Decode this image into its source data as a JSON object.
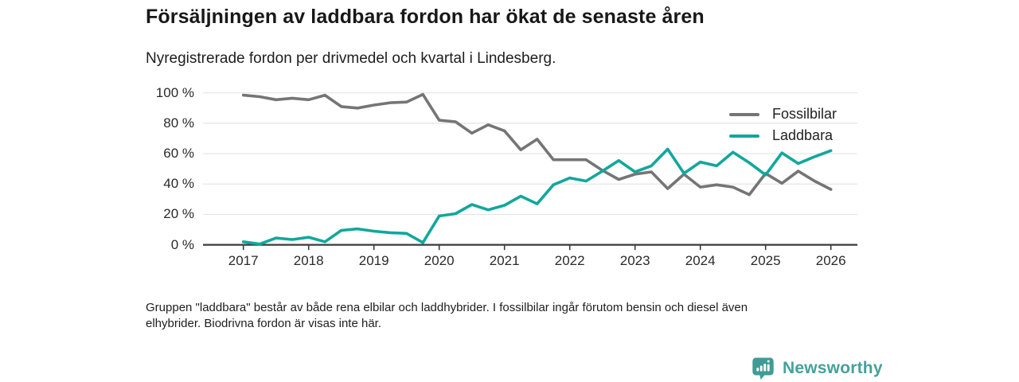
{
  "header": {
    "title": "Försäljningen av laddbara fordon har ökat de senaste åren",
    "subtitle": "Nyregistrerade fordon per drivmedel och kvartal i Lindesberg."
  },
  "chart_data": {
    "type": "line",
    "title": "Försäljningen av laddbara fordon har ökat de senaste åren",
    "subtitle": "Nyregistrerade fordon per drivmedel och kvartal i Lindesberg.",
    "x_unit": "quarter",
    "x_start": "2017 Q1",
    "x_end": "2026 Q1",
    "ylim": [
      0,
      100
    ],
    "grid": "horizontal",
    "legend_position": "top-right",
    "y_ticks": {
      "values": [
        0,
        20,
        40,
        60,
        80,
        100
      ],
      "labels": [
        "0 %",
        "20 %",
        "40 %",
        "60 %",
        "80 %",
        "100 %"
      ]
    },
    "x_ticks": {
      "positions": [
        0,
        4,
        8,
        12,
        16,
        20,
        24,
        28,
        32,
        36
      ],
      "labels": [
        "2017",
        "2018",
        "2019",
        "2020",
        "2021",
        "2022",
        "2023",
        "2024",
        "2025",
        "2026"
      ]
    },
    "series": [
      {
        "name": "Fossilbilar",
        "color": "#757575",
        "values": [
          98.5,
          97.5,
          95.5,
          96.5,
          95.5,
          98.5,
          91,
          90,
          92,
          93.5,
          94,
          99,
          82,
          81,
          73.5,
          79,
          75,
          62.5,
          69.5,
          56,
          56,
          56,
          49,
          43,
          46.5,
          48,
          37,
          46.5,
          38,
          39.5,
          38,
          33,
          47,
          40.5,
          48.5,
          42,
          36.5
        ]
      },
      {
        "name": "Laddbara",
        "color": "#12a79c",
        "values": [
          2,
          0.5,
          4.5,
          3.5,
          5,
          2,
          9.5,
          10.5,
          9,
          8,
          7.5,
          1.5,
          19,
          20.5,
          26.5,
          23,
          26,
          32,
          27,
          39.5,
          44,
          42,
          48.5,
          55.5,
          48,
          52,
          63,
          47,
          54.5,
          52,
          61,
          54,
          46,
          60.5,
          53.5,
          58,
          62
        ]
      }
    ]
  },
  "footnote": {
    "line1": "Gruppen \"laddbara\" består av både rena elbilar och laddhybrider. I fossilbilar ingår förutom bensin och diesel även",
    "line2": "elhybrider. Biodrivna fordon är visas inte här."
  },
  "footer": {
    "brand": "Newsworthy"
  },
  "colors": {
    "series_fossilbilar": "#757575",
    "series_laddbara": "#12a79c",
    "axis": "#3b3b3b",
    "gridline": "#e4e4e4",
    "brand_teal": "#45a19a",
    "brand_icon_teal": "#3e9c94",
    "text": "#1e1e1e"
  }
}
